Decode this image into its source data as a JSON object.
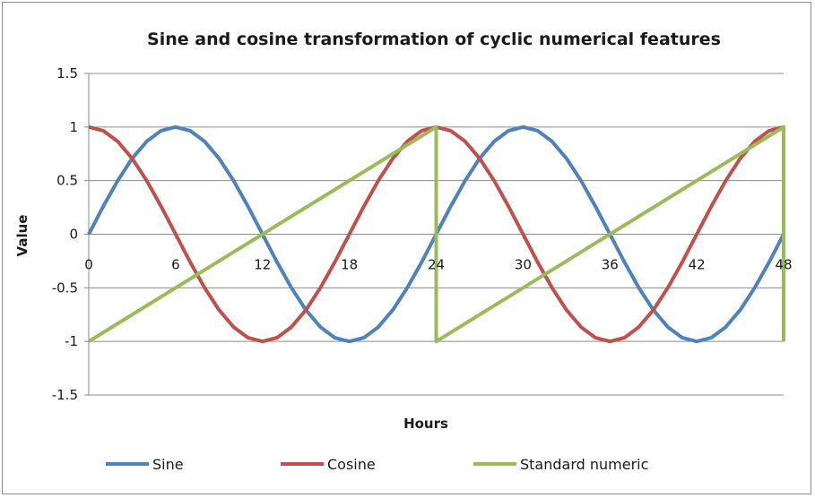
{
  "chart_data": {
    "type": "line",
    "title": "Sine and cosine transformation of cyclic numerical features",
    "xlabel": "Hours",
    "ylabel": "Value",
    "xlim": [
      0,
      48
    ],
    "ylim": [
      -1.5,
      1.5
    ],
    "x_ticks": [
      "0",
      "6",
      "12",
      "18",
      "24",
      "30",
      "36",
      "42",
      "48"
    ],
    "y_ticks": [
      "1.5",
      "1",
      "0.5",
      "0",
      "-0.5",
      "-1",
      "-1.5"
    ],
    "grid": "horizontal",
    "legend_position": "bottom",
    "series": [
      {
        "name": "Sine",
        "color": "#4f81bd",
        "x": [
          0,
          1,
          2,
          3,
          4,
          5,
          6,
          7,
          8,
          9,
          10,
          11,
          12,
          13,
          14,
          15,
          16,
          17,
          18,
          19,
          20,
          21,
          22,
          23,
          24,
          25,
          26,
          27,
          28,
          29,
          30,
          31,
          32,
          33,
          34,
          35,
          36,
          37,
          38,
          39,
          40,
          41,
          42,
          43,
          44,
          45,
          46,
          47,
          48
        ],
        "values": [
          0,
          0.259,
          0.5,
          0.707,
          0.866,
          0.966,
          1,
          0.966,
          0.866,
          0.707,
          0.5,
          0.259,
          0,
          -0.259,
          -0.5,
          -0.707,
          -0.866,
          -0.966,
          -1,
          -0.966,
          -0.866,
          -0.707,
          -0.5,
          -0.259,
          0,
          0.259,
          0.5,
          0.707,
          0.866,
          0.966,
          1,
          0.966,
          0.866,
          0.707,
          0.5,
          0.259,
          0,
          -0.259,
          -0.5,
          -0.707,
          -0.866,
          -0.966,
          -1,
          -0.966,
          -0.866,
          -0.707,
          -0.5,
          -0.259,
          0
        ]
      },
      {
        "name": "Cosine",
        "color": "#c0504d",
        "x": [
          0,
          1,
          2,
          3,
          4,
          5,
          6,
          7,
          8,
          9,
          10,
          11,
          12,
          13,
          14,
          15,
          16,
          17,
          18,
          19,
          20,
          21,
          22,
          23,
          24,
          25,
          26,
          27,
          28,
          29,
          30,
          31,
          32,
          33,
          34,
          35,
          36,
          37,
          38,
          39,
          40,
          41,
          42,
          43,
          44,
          45,
          46,
          47,
          48
        ],
        "values": [
          1,
          0.966,
          0.866,
          0.707,
          0.5,
          0.259,
          0,
          -0.259,
          -0.5,
          -0.707,
          -0.866,
          -0.966,
          -1,
          -0.966,
          -0.866,
          -0.707,
          -0.5,
          -0.259,
          0,
          0.259,
          0.5,
          0.707,
          0.866,
          0.966,
          1,
          0.966,
          0.866,
          0.707,
          0.5,
          0.259,
          0,
          -0.259,
          -0.5,
          -0.707,
          -0.866,
          -0.966,
          -1,
          -0.966,
          -0.866,
          -0.707,
          -0.5,
          -0.259,
          0,
          0.259,
          0.5,
          0.707,
          0.866,
          0.966,
          1
        ]
      },
      {
        "name": "Standard numeric",
        "color": "#9bbb59",
        "x": [
          0,
          24,
          24,
          48,
          48
        ],
        "values": [
          -1,
          1,
          -1,
          1,
          -1
        ]
      }
    ]
  }
}
